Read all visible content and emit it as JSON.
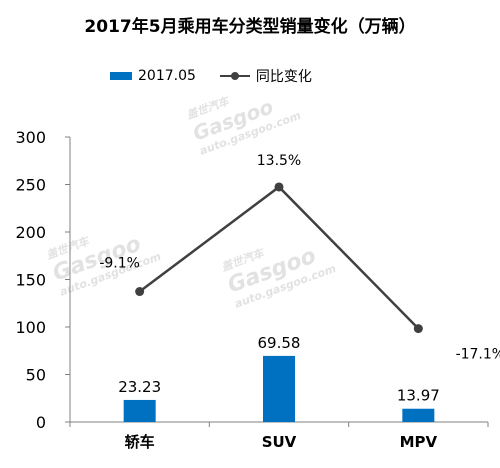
{
  "watermark": {
    "brand_cn": "盖世汽车",
    "brand": "Gasgoo",
    "url": "auto.gasgoo.com"
  },
  "chart_data": {
    "type": "bar",
    "title": "2017年5月乘用车分类型销量变化（万辆）",
    "categories": [
      "轿车",
      "SUV",
      "MPV"
    ],
    "legend_position": "top",
    "series": [
      {
        "name": "2017.05",
        "type": "bar",
        "values": [
          23.23,
          69.58,
          13.97
        ],
        "labels": [
          "23.23",
          "69.58",
          "13.97"
        ],
        "color": "#0070C0"
      },
      {
        "name": "同比变化",
        "type": "line",
        "values": [
          -9.1,
          13.5,
          -17.1
        ],
        "labels": [
          "-9.1%",
          "13.5%",
          "-17.1%"
        ],
        "color": "#404040"
      }
    ],
    "y_axis": {
      "ylim": [
        0,
        300
      ],
      "ticks": [
        "0",
        "50",
        "100",
        "150",
        "200",
        "250",
        "300"
      ]
    },
    "grid": false
  }
}
